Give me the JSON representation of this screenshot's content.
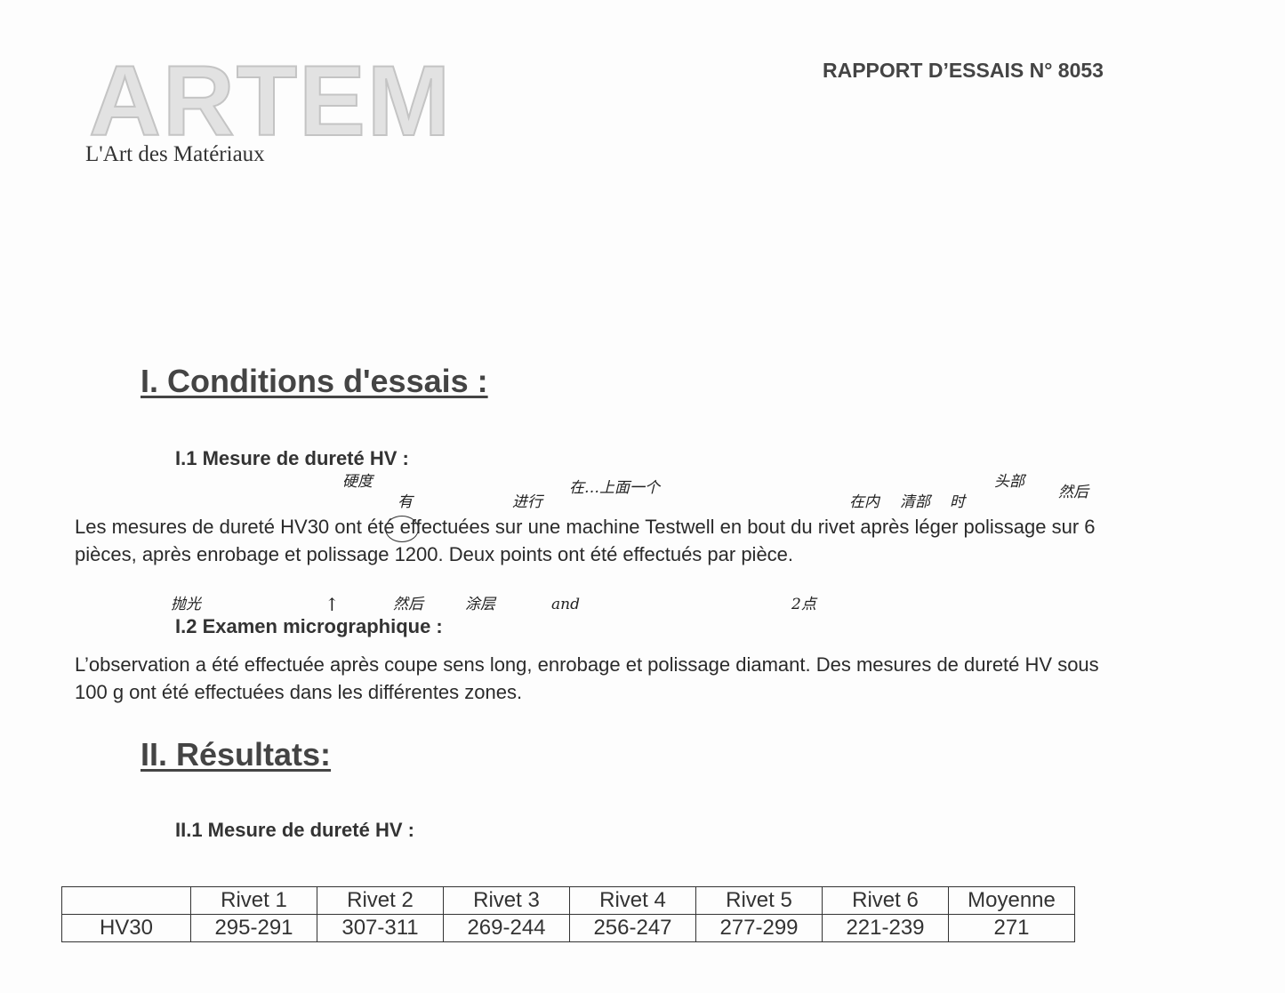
{
  "header": {
    "logo_text": "ARTEM",
    "logo_tagline": "L'Art des Matériaux",
    "report_title": "RAPPORT D’ESSAIS N° 8053"
  },
  "section1": {
    "title": "I. Conditions d'essais :",
    "sub1": {
      "title": "I.1 Mesure de dureté HV :",
      "text": "Les mesures de dureté HV30 ont été effectuées sur une machine Testwell en bout du rivet après léger polissage sur 6 pièces, après enrobage et polissage 1200. Deux points ont été effectués par pièce."
    },
    "sub2": {
      "title": "I.2 Examen micrographique :",
      "text": "L’observation a été effectuée après coupe sens long, enrobage et polissage diamant. Des mesures de dureté HV sous 100 g ont été effectuées dans les différentes zones."
    }
  },
  "annotations": [
    "硬度",
    "有",
    "进行",
    "在…上面一个",
    "在内",
    "清部",
    "时",
    "头部",
    "然后",
    "抛光",
    "↑",
    "然后",
    "涂层",
    "and",
    "2点"
  ],
  "section2": {
    "title": "II. Résultats:",
    "sub1": {
      "title": "II.1 Mesure de dureté HV :"
    },
    "table": {
      "headers": [
        "",
        "Rivet 1",
        "Rivet 2",
        "Rivet 3",
        "Rivet 4",
        "Rivet 5",
        "Rivet 6",
        "Moyenne"
      ],
      "rows": [
        [
          "HV30",
          "295-291",
          "307-311",
          "269-244",
          "256-247",
          "277-299",
          "221-239",
          "271"
        ]
      ]
    }
  }
}
